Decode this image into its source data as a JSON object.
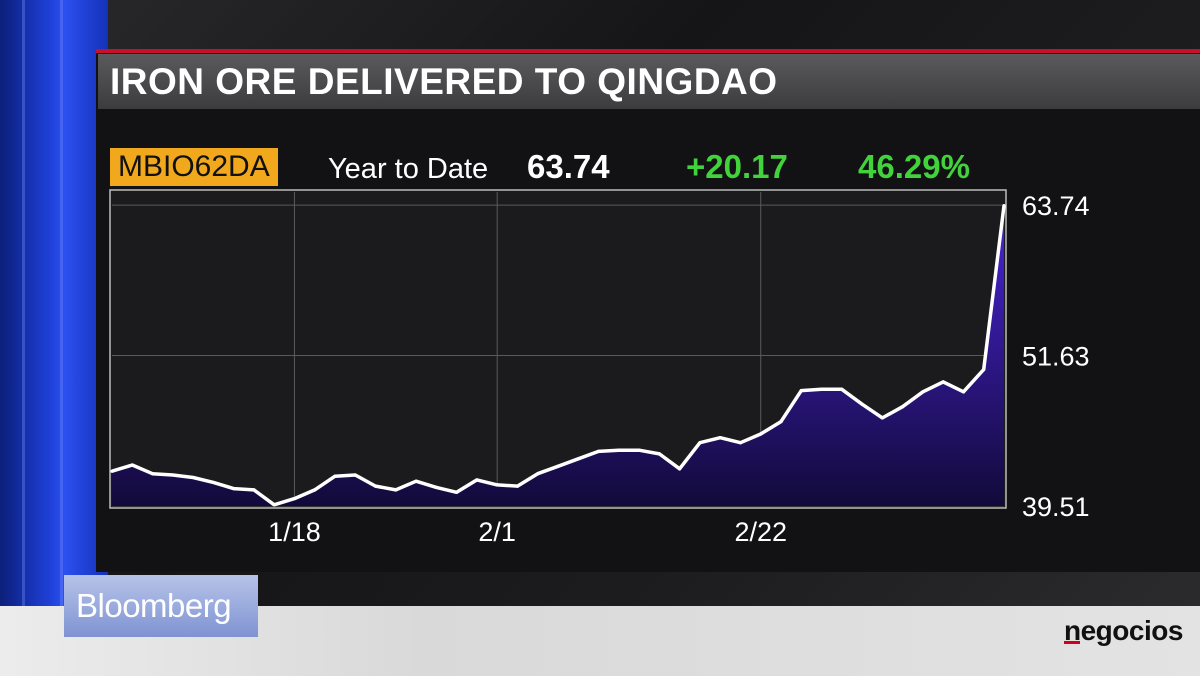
{
  "title": "IRON ORE DELIVERED TO QINGDAO",
  "header": {
    "ticker": "MBIO62DA",
    "period": "Year to Date",
    "last": "63.74",
    "change": "+20.17",
    "change_pct": "46.29%"
  },
  "colors": {
    "ticker_bg": "#f2a81d",
    "positive": "#41d23c",
    "accent_red": "#c8102e",
    "fill": "#3a1fb0"
  },
  "logos": {
    "left": "Bloomberg",
    "right": "negocios"
  },
  "chart_data": {
    "type": "area",
    "title": "IRON ORE DELIVERED TO QINGDAO",
    "xlabel": "",
    "ylabel": "",
    "ylim": [
      39.5,
      64.8
    ],
    "x_ticks": [
      {
        "label": "1/18",
        "index": 9
      },
      {
        "label": "2/1",
        "index": 19
      },
      {
        "label": "2/22",
        "index": 32
      }
    ],
    "y_ticks": [
      "63.74",
      "51.63",
      "39.51"
    ],
    "y_tick_values": [
      63.74,
      51.63,
      39.51
    ],
    "grid": true,
    "series": [
      {
        "values": [
          42.3,
          42.8,
          42.1,
          42.0,
          41.8,
          41.4,
          40.9,
          40.8,
          39.6,
          40.1,
          40.8,
          41.9,
          42.0,
          41.1,
          40.8,
          41.5,
          41.0,
          40.6,
          41.6,
          41.2,
          41.1,
          42.1,
          42.7,
          43.3,
          43.9,
          44.0,
          44.0,
          43.7,
          42.5,
          44.6,
          45.0,
          44.6,
          45.3,
          46.3,
          48.8,
          48.9,
          48.9,
          47.7,
          46.6,
          47.5,
          48.7,
          49.5,
          48.7,
          50.5,
          63.7
        ]
      }
    ]
  }
}
